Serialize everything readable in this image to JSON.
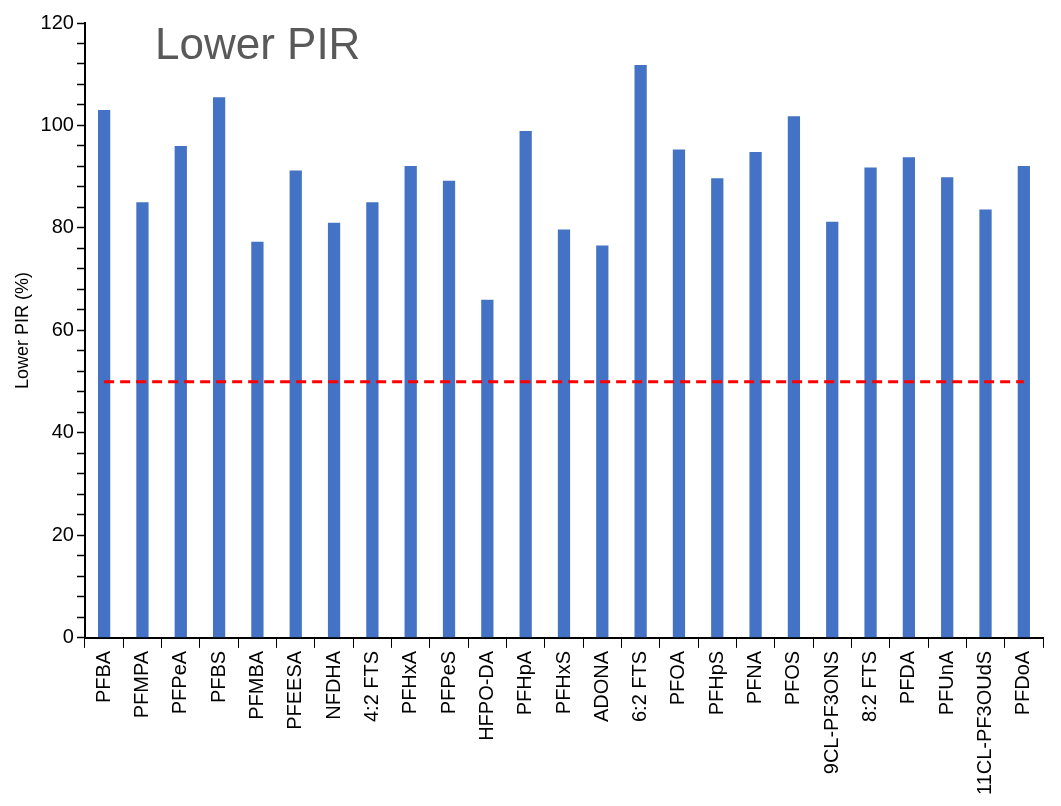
{
  "chart_data": {
    "type": "bar",
    "title": "Lower PIR",
    "ylabel": "Lower PIR (%)",
    "categories": [
      "PFBA",
      "PFMPA",
      "PFPeA",
      "PFBS",
      "PFMBA",
      "PFEESA",
      "NFDHA",
      "4:2 FTS",
      "PFHxA",
      "PFPeS",
      "HFPO-DA",
      "PFHpA",
      "PFHxS",
      "ADONA",
      "6:2 FTS",
      "PFOA",
      "PFHpS",
      "PFNA",
      "PFOS",
      "9CL-PF3ONS",
      "8:2 FTS",
      "PFDA",
      "PFUnA",
      "11CL-PF3OUdS",
      "PFDoA"
    ],
    "values": [
      103,
      85,
      96,
      105.5,
      77.3,
      91.2,
      81,
      85,
      92.1,
      89.2,
      66,
      98.9,
      79.7,
      76.6,
      111.8,
      95.3,
      89.7,
      94.8,
      101.8,
      81.2,
      91.8,
      93.8,
      89.9,
      83.6,
      92.1
    ],
    "color": "#4472c4",
    "ylim": [
      0,
      120
    ],
    "yticks": [
      0,
      {
        "value": 4,
        "label": null
      },
      {
        "value": 8,
        "label": null
      },
      {
        "value": 12,
        "label": null
      },
      {
        "value": 16,
        "label": null
      },
      20,
      {
        "value": 24,
        "label": null
      },
      {
        "value": 28,
        "label": null
      },
      {
        "value": 32,
        "label": null
      },
      {
        "value": 36,
        "label": null
      },
      40,
      {
        "value": 44,
        "label": null
      },
      {
        "value": 48,
        "label": null
      },
      {
        "value": 52,
        "label": null
      },
      {
        "value": 56,
        "label": null
      },
      60,
      {
        "value": 64,
        "label": null
      },
      {
        "value": 68,
        "label": null
      },
      {
        "value": 72,
        "label": null
      },
      {
        "value": 76,
        "label": null
      },
      80,
      {
        "value": 84,
        "label": null
      },
      {
        "value": 88,
        "label": null
      },
      {
        "value": 92,
        "label": null
      },
      {
        "value": 96,
        "label": null
      },
      100,
      {
        "value": 104,
        "label": null
      },
      {
        "value": 108,
        "label": null
      },
      {
        "value": 112,
        "label": null
      },
      {
        "value": 116,
        "label": null
      },
      120
    ],
    "ref_lines": [
      {
        "axis": "y",
        "value": 50,
        "color": "#ff0000",
        "line_style": "dashed"
      }
    ],
    "grid": false,
    "legend": false
  }
}
